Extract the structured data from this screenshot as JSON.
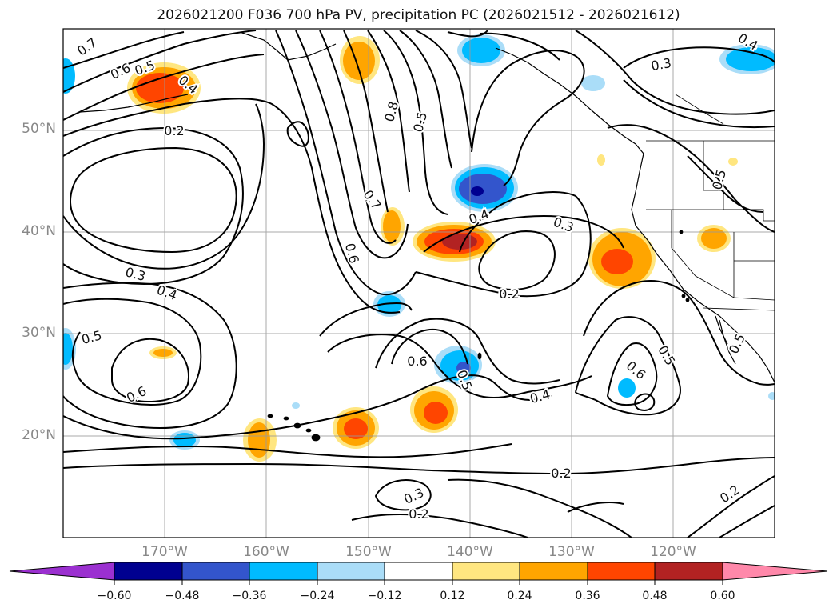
{
  "title": "2026021200 F036 700 hPa PV, precipitation PC (2026021512 - 2026021612)",
  "lat_labels": [
    "50°N",
    "40°N",
    "30°N",
    "20°N"
  ],
  "lon_labels": [
    "170°W",
    "160°W",
    "150°W",
    "140°W",
    "130°W",
    "120°W"
  ],
  "contour_labels": [
    "0.7",
    "0.6",
    "0.5",
    "0.4",
    "0.2",
    "0.8",
    "0.5",
    "0.3",
    "0.4",
    "0.7",
    "0.6",
    "0.4",
    "0.3",
    "0.5",
    "0.3",
    "0.4",
    "0.2",
    "0.5",
    "0.6",
    "0.6",
    "0.5",
    "0.4",
    "0.6",
    "0.5",
    "0.5",
    "0.3",
    "0.2",
    "0.2",
    "0.2"
  ],
  "colorbar": {
    "tick_labels": [
      "−0.60",
      "−0.48",
      "−0.36",
      "−0.24",
      "−0.12",
      "0.12",
      "0.24",
      "0.36",
      "0.48",
      "0.60"
    ],
    "colors": [
      "#9b30d0",
      "#000090",
      "#3355cc",
      "#00bbff",
      "#aaddf8",
      "#ffffff",
      "#ffe680",
      "#ffa500",
      "#ff4500",
      "#b22222",
      "#ff88aa"
    ]
  }
}
